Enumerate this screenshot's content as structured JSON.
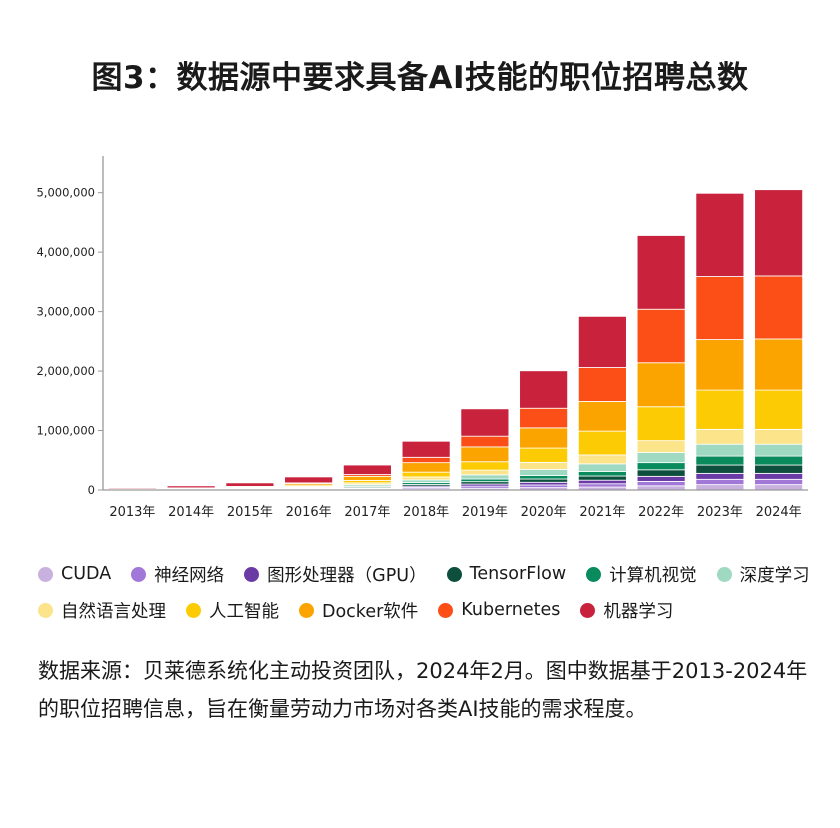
{
  "title": "图3：数据源中要求具备AI技能的职位招聘总数",
  "note": "数据来源：贝莱德系统化主动投资团队，2024年2月。图中数据基于2013-2024年的职位招聘信息，旨在衡量劳动力市场对各类AI技能的需求程度。",
  "chart_data": {
    "type": "bar",
    "stacked": true,
    "title": "图3：数据源中要求具备AI技能的职位招聘总数",
    "xlabel": "",
    "ylabel": "",
    "ylim": [
      0,
      5600000
    ],
    "yticks": [
      0,
      1000000,
      2000000,
      3000000,
      4000000,
      5000000
    ],
    "ytick_labels": [
      "0",
      "1,000,000",
      "2,000,000",
      "3,000,000",
      "4,000,000",
      "5,000,000"
    ],
    "categories": [
      "2013年",
      "2014年",
      "2015年",
      "2016年",
      "2017年",
      "2018年",
      "2019年",
      "2020年",
      "2021年",
      "2022年",
      "2023年",
      "2024年"
    ],
    "series": [
      {
        "name": "CUDA",
        "color": "#c9b1df",
        "values": [
          2000,
          3000,
          4000,
          6000,
          10000,
          20000,
          30000,
          40000,
          50000,
          70000,
          90000,
          90000
        ]
      },
      {
        "name": "神经网络",
        "color": "#a178d8",
        "values": [
          3000,
          4000,
          5000,
          8000,
          12000,
          25000,
          35000,
          45000,
          55000,
          75000,
          90000,
          90000
        ]
      },
      {
        "name": "图形处理器（GPU）",
        "color": "#6a3aa5",
        "values": [
          2000,
          3000,
          4000,
          6000,
          10000,
          20000,
          35000,
          45000,
          60000,
          85000,
          100000,
          100000
        ]
      },
      {
        "name": "TensorFlow",
        "color": "#0d4f3c",
        "values": [
          0,
          0,
          2000,
          8000,
          18000,
          30000,
          40000,
          55000,
          70000,
          110000,
          140000,
          140000
        ]
      },
      {
        "name": "计算机视觉",
        "color": "#0a8b5e",
        "values": [
          3000,
          4000,
          5000,
          8000,
          15000,
          30000,
          45000,
          60000,
          75000,
          120000,
          150000,
          150000
        ]
      },
      {
        "name": "深度学习",
        "color": "#9fd9c1",
        "values": [
          4000,
          6000,
          8000,
          12000,
          25000,
          45000,
          70000,
          100000,
          130000,
          170000,
          200000,
          200000
        ]
      },
      {
        "name": "自然语言处理",
        "color": "#fce48a",
        "values": [
          5000,
          7000,
          10000,
          15000,
          30000,
          50000,
          80000,
          120000,
          150000,
          200000,
          250000,
          250000
        ]
      },
      {
        "name": "人工智能",
        "color": "#fccb04",
        "values": [
          4000,
          6000,
          10000,
          20000,
          40000,
          80000,
          140000,
          240000,
          400000,
          570000,
          660000,
          660000
        ]
      },
      {
        "name": "Docker软件",
        "color": "#fba400",
        "values": [
          0,
          3000,
          12000,
          30000,
          70000,
          160000,
          250000,
          340000,
          500000,
          740000,
          850000,
          860000
        ]
      },
      {
        "name": "Kubernetes",
        "color": "#fc4f17",
        "values": [
          0,
          0,
          0,
          7000,
          30000,
          90000,
          180000,
          330000,
          570000,
          900000,
          1060000,
          1060000
        ]
      },
      {
        "name": "机器学习",
        "color": "#c8223d",
        "values": [
          17000,
          34000,
          60000,
          100000,
          160000,
          270000,
          460000,
          630000,
          860000,
          1240000,
          1400000,
          1450000
        ]
      }
    ]
  },
  "legend_rows": [
    [
      0,
      1,
      2,
      3,
      4,
      5
    ],
    [
      6,
      7,
      8,
      9,
      10
    ]
  ]
}
